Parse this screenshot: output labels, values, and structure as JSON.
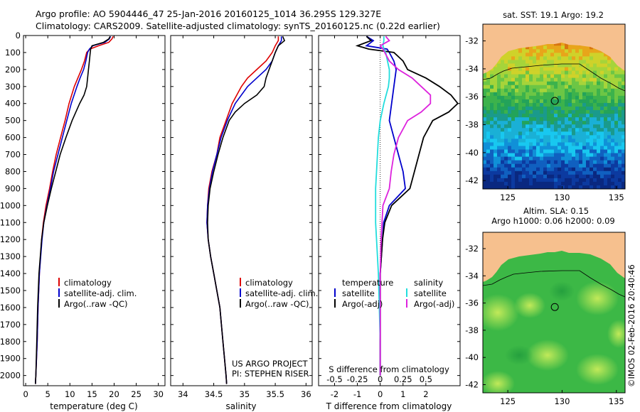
{
  "header": {
    "line1": "Argo profile: AO 5904446_47 25-Jan-2016 20160125_1014 36.295S 129.327E",
    "line2": "Climatology: CARS2009. Satellite-adjusted climatology: synTS_20160125.nc (0.22d earlier)"
  },
  "colors": {
    "climatology": "#dd0000",
    "satellite": "#0000cc",
    "argo": "#000000",
    "salinity_satellite": "#22dddd",
    "salinity_argo": "#dd22dd",
    "land": "#f6c08e"
  },
  "chart_data": [
    {
      "type": "line",
      "name": "temperature-profile",
      "xlabel": "temperature (deg C)",
      "ylabel": "",
      "xlim": [
        -0.5,
        31.5
      ],
      "ylim": [
        2060,
        0
      ],
      "x_ticks": [
        0,
        5,
        10,
        15,
        20,
        25,
        30
      ],
      "y_ticks": [
        0,
        100,
        200,
        300,
        400,
        500,
        600,
        700,
        800,
        900,
        1000,
        1100,
        1200,
        1300,
        1400,
        1500,
        1600,
        1700,
        1800,
        1900,
        2000
      ],
      "legend": [
        "climatology",
        "satellite-adj. clim.",
        "Argo(..raw -QC)"
      ],
      "legend_position": "lower-center",
      "series": [
        {
          "name": "climatology",
          "depth": [
            5,
            20,
            40,
            60,
            80,
            100,
            150,
            200,
            250,
            300,
            400,
            500,
            600,
            700,
            800,
            900,
            1000,
            1100,
            1200,
            1400,
            1600,
            1800,
            2000,
            2050
          ],
          "values": [
            19.8,
            19.5,
            18.8,
            16.5,
            14.5,
            13.8,
            13.3,
            12.6,
            11.8,
            11.0,
            9.8,
            8.9,
            7.9,
            6.9,
            6.1,
            5.4,
            4.6,
            4.0,
            3.6,
            3.1,
            2.8,
            2.6,
            2.3,
            2.2
          ]
        },
        {
          "name": "satellite-adj. clim.",
          "depth": [
            5,
            20,
            40,
            60,
            80,
            100,
            150,
            200,
            250,
            300,
            400,
            500,
            600,
            700,
            800,
            900,
            1000,
            1100,
            1200,
            1400,
            1600,
            1800,
            2000,
            2050
          ],
          "values": [
            19.2,
            18.9,
            17.9,
            15.2,
            14.4,
            14.0,
            13.6,
            13.1,
            12.3,
            11.6,
            10.3,
            9.3,
            8.3,
            7.3,
            6.3,
            5.6,
            4.8,
            4.1,
            3.7,
            3.1,
            2.8,
            2.6,
            2.3,
            2.2
          ]
        },
        {
          "name": "Argo(..raw -QC)",
          "depth": [
            5,
            20,
            40,
            60,
            80,
            100,
            150,
            200,
            250,
            300,
            350,
            400,
            500,
            600,
            700,
            800,
            900,
            1000,
            1100,
            1200,
            1400,
            1600,
            1800,
            2000,
            2050
          ],
          "values": [
            19.1,
            18.8,
            17.6,
            15.0,
            14.7,
            14.6,
            14.4,
            14.2,
            14.0,
            13.8,
            13.2,
            12.2,
            10.5,
            9.1,
            7.8,
            6.8,
            5.8,
            4.9,
            4.1,
            3.6,
            3.0,
            2.7,
            2.5,
            2.3,
            2.2
          ]
        }
      ]
    },
    {
      "type": "line",
      "name": "salinity-profile",
      "xlabel": "salinity",
      "ylabel": "",
      "xlim": [
        33.8,
        36.1
      ],
      "ylim": [
        2060,
        0
      ],
      "x_ticks": [
        34,
        34.5,
        35,
        35.5,
        36
      ],
      "legend": [
        "climatology",
        "satellite-adj. clim.",
        "Argo(..raw -QC)"
      ],
      "legend_position": "lower-right",
      "annotations": [
        "US ARGO PROJECT",
        "PI: STEPHEN RISER"
      ],
      "series": [
        {
          "name": "climatology",
          "depth": [
            5,
            30,
            60,
            100,
            150,
            200,
            250,
            300,
            400,
            500,
            600,
            700,
            800,
            900,
            1000,
            1100,
            1200,
            1300,
            1400,
            1500,
            1600,
            1800,
            2000,
            2050
          ],
          "values": [
            35.55,
            35.55,
            35.5,
            35.45,
            35.35,
            35.2,
            35.05,
            34.95,
            34.8,
            34.7,
            34.6,
            34.55,
            34.47,
            34.42,
            34.4,
            34.39,
            34.41,
            34.45,
            34.5,
            34.55,
            34.6,
            34.65,
            34.7,
            34.71
          ]
        },
        {
          "name": "satellite-adj. clim.",
          "depth": [
            5,
            30,
            60,
            100,
            150,
            200,
            250,
            300,
            400,
            500,
            600,
            700,
            800,
            900,
            1000,
            1100,
            1200,
            1300,
            1400,
            1500,
            1600,
            1800,
            2000,
            2050
          ],
          "values": [
            35.6,
            35.6,
            35.55,
            35.5,
            35.45,
            35.35,
            35.2,
            35.05,
            34.85,
            34.72,
            34.62,
            34.55,
            34.48,
            34.43,
            34.4,
            34.39,
            34.41,
            34.45,
            34.5,
            34.55,
            34.6,
            34.65,
            34.7,
            34.71
          ]
        },
        {
          "name": "Argo(..raw -QC)",
          "depth": [
            5,
            30,
            60,
            100,
            150,
            200,
            250,
            300,
            350,
            400,
            450,
            500,
            600,
            700,
            800,
            900,
            1000,
            1100,
            1200,
            1300,
            1400,
            1500,
            1600,
            1800,
            2000,
            2050
          ],
          "values": [
            35.62,
            35.65,
            35.55,
            35.5,
            35.45,
            35.4,
            35.35,
            35.32,
            35.2,
            35.0,
            34.85,
            34.75,
            34.65,
            34.57,
            34.5,
            34.44,
            34.41,
            34.4,
            34.41,
            34.45,
            34.5,
            34.55,
            34.6,
            34.65,
            34.7,
            34.71
          ]
        }
      ]
    },
    {
      "type": "line",
      "name": "difference-profile",
      "xlabel": "T difference from climatology",
      "xlabel_top": "S difference from climatology",
      "xlim": [
        -2.7,
        3.5
      ],
      "ylim": [
        2060,
        0
      ],
      "x_ticks": [
        -2,
        -1,
        0,
        1,
        2
      ],
      "s_ticks": [
        -0.5,
        -0.25,
        0,
        0.25,
        0.5
      ],
      "legend_groups": [
        {
          "title": "temperature",
          "entries": [
            "satellite",
            "Argo(-adj)"
          ]
        },
        {
          "title": "salinity",
          "entries": [
            "satellite",
            "Argo(-adj)"
          ]
        }
      ],
      "legend_position": "lower-center",
      "series": [
        {
          "name": "temperature satellite",
          "depth": [
            5,
            30,
            60,
            80,
            100,
            150,
            200,
            300,
            400,
            500,
            600,
            700,
            800,
            900,
            1000,
            1100,
            1200,
            1300,
            1400,
            1600,
            1800,
            2000
          ],
          "values": [
            -0.6,
            -0.3,
            -0.6,
            0.3,
            0.4,
            0.6,
            0.7,
            0.6,
            0.5,
            0.4,
            0.6,
            0.8,
            1.0,
            1.1,
            0.4,
            0.15,
            0.1,
            0.05,
            0.0,
            0.0,
            0.0,
            0.0
          ]
        },
        {
          "name": "temperature Argo(-adj)",
          "depth": [
            5,
            30,
            60,
            80,
            100,
            150,
            200,
            250,
            300,
            350,
            400,
            450,
            500,
            600,
            700,
            800,
            900,
            1000,
            1100,
            1200,
            1400,
            1600,
            1800,
            2000
          ],
          "values": [
            -0.6,
            -0.4,
            -1.0,
            -0.5,
            0.6,
            1.0,
            1.2,
            2.0,
            2.6,
            3.1,
            3.4,
            3.0,
            2.3,
            1.9,
            1.7,
            1.5,
            1.3,
            0.5,
            0.2,
            0.1,
            0.0,
            0.0,
            0.0,
            0.0
          ]
        },
        {
          "name": "salinity satellite",
          "depth": [
            5,
            30,
            60,
            80,
            100,
            150,
            200,
            250,
            300,
            400,
            500,
            600,
            700,
            800,
            900,
            1000,
            1100,
            1200,
            1300,
            1400,
            1600,
            1800,
            2000
          ],
          "values": [
            0.04,
            0.04,
            0.03,
            0.04,
            0.06,
            0.08,
            0.1,
            0.1,
            0.09,
            0.04,
            0.0,
            -0.02,
            -0.03,
            -0.04,
            -0.05,
            -0.05,
            -0.05,
            -0.04,
            -0.03,
            -0.02,
            -0.01,
            0.0,
            0.0
          ]
        },
        {
          "name": "salinity Argo(-adj)",
          "depth": [
            5,
            30,
            60,
            80,
            100,
            150,
            200,
            250,
            300,
            350,
            400,
            450,
            500,
            600,
            700,
            800,
            900,
            1000,
            1100,
            1200,
            1400,
            1600,
            1800,
            2000
          ],
          "values": [
            0.06,
            0.1,
            0.0,
            0.03,
            0.05,
            0.1,
            0.2,
            0.35,
            0.45,
            0.55,
            0.55,
            0.45,
            0.3,
            0.2,
            0.15,
            0.12,
            0.1,
            0.03,
            0.02,
            0.01,
            0.0,
            0.0,
            0.0,
            0.0
          ]
        }
      ]
    },
    {
      "type": "heatmap",
      "name": "sst-map",
      "title": "sat. SST: 19.1  Argo: 19.2",
      "x_ticks": [
        125,
        130,
        135
      ],
      "y_ticks": [
        -32,
        -34,
        -36,
        -38,
        -40,
        -42
      ],
      "xlim": [
        122.7,
        135.8
      ],
      "ylim": [
        -42.6,
        -30.8
      ],
      "marker": {
        "lon": 129.327,
        "lat": -36.295
      }
    },
    {
      "type": "heatmap",
      "name": "sla-map",
      "title": "Altim. SLA: 0.15",
      "subtitle": "Argo h1000: 0.06 h2000: 0.09",
      "x_ticks": [
        125,
        130,
        135
      ],
      "y_ticks": [
        -32,
        -34,
        -36,
        -38,
        -40,
        -42
      ],
      "xlim": [
        122.7,
        135.8
      ],
      "ylim": [
        -42.6,
        -30.8
      ],
      "marker": {
        "lon": 129.327,
        "lat": -36.295
      }
    }
  ],
  "credit": "©IMOS 02-Feb-2016 20:40:46"
}
